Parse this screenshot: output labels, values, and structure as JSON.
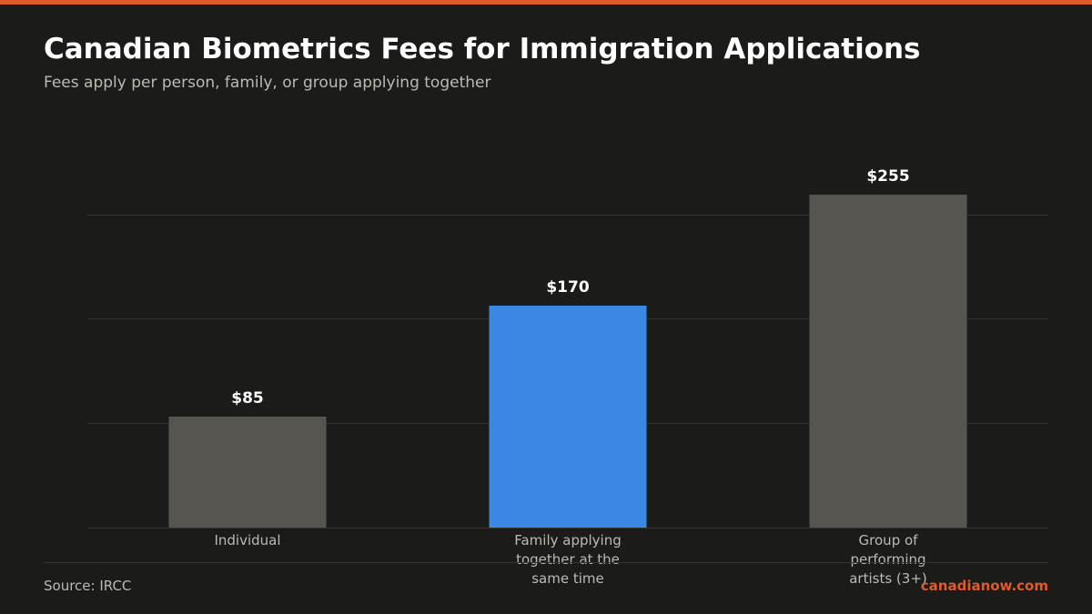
{
  "colors": {
    "accent": "#e05a2b",
    "background": "#1b1b1a",
    "bar_default": "#56554f",
    "bar_highlight": "#3b88e4",
    "grid": "#343432",
    "label_text": "#bdbab1",
    "value_text": "#ffffff"
  },
  "header": {
    "title": "Canadian Biometrics Fees for Immigration Applications",
    "subtitle": "Fees apply per person, family, or group applying together"
  },
  "footer": {
    "source": "Source: IRCC",
    "brand": "canadianow.com"
  },
  "chart_data": {
    "type": "bar",
    "title": "Canadian Biometrics Fees for Immigration Applications",
    "subtitle": "Fees apply per person, family, or group applying together",
    "categories": [
      [
        "Individual"
      ],
      [
        "Family applying",
        "together at the",
        "same time"
      ],
      [
        "Group of",
        "performing",
        "artists (3+)"
      ]
    ],
    "values": [
      85,
      170,
      255
    ],
    "value_labels": [
      "$85",
      "$170",
      "$255"
    ],
    "highlight_index": 1,
    "ylim": [
      0,
      255
    ],
    "yticks": [
      0,
      80,
      160,
      240
    ],
    "grid": true,
    "xlabel": "",
    "ylabel": ""
  }
}
